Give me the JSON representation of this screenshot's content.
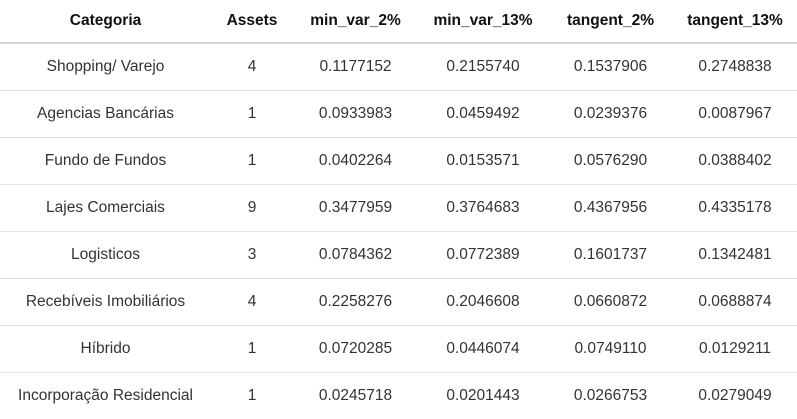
{
  "table": {
    "headers": [
      "Categoria",
      "Assets",
      "min_var_2%",
      "min_var_13%",
      "tangent_2%",
      "tangent_13%"
    ],
    "rows": [
      [
        "Shopping/ Varejo",
        "4",
        "0.1177152",
        "0.2155740",
        "0.1537906",
        "0.2748838"
      ],
      [
        "Agencias Bancárias",
        "1",
        "0.0933983",
        "0.0459492",
        "0.0239376",
        "0.0087967"
      ],
      [
        "Fundo de Fundos",
        "1",
        "0.0402264",
        "0.0153571",
        "0.0576290",
        "0.0388402"
      ],
      [
        "Lajes Comerciais",
        "9",
        "0.3477959",
        "0.3764683",
        "0.4367956",
        "0.4335178"
      ],
      [
        "Logisticos",
        "3",
        "0.0784362",
        "0.0772389",
        "0.1601737",
        "0.1342481"
      ],
      [
        "Recebíveis Imobiliários",
        "4",
        "0.2258276",
        "0.2046608",
        "0.0660872",
        "0.0688874"
      ],
      [
        "Híbrido",
        "1",
        "0.0720285",
        "0.0446074",
        "0.0749110",
        "0.0129211"
      ],
      [
        "Incorporação Residencial",
        "1",
        "0.0245718",
        "0.0201443",
        "0.0266753",
        "0.0279049"
      ]
    ]
  }
}
